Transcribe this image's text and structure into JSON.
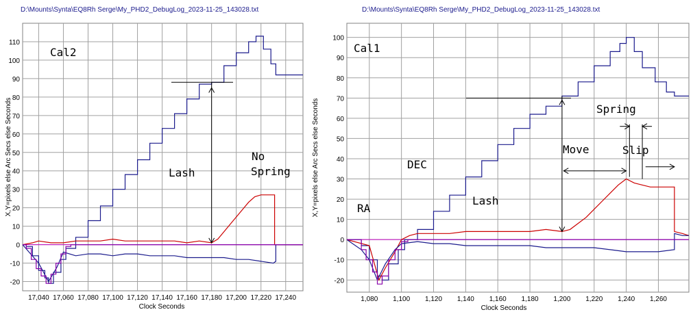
{
  "chart_data": [
    {
      "type": "line",
      "title": "D:\\Mounts\\Synta\\EQ8Rh Serge\\My_PHD2_DebugLog_2023-11-25_143028.txt",
      "xlabel": "Clock Seconds",
      "ylabel": "X,Y=pixels else Arc Secs else Seconds",
      "xlim": [
        17027,
        17254
      ],
      "ylim": [
        -25,
        120
      ],
      "xticks": [
        17040,
        17060,
        17080,
        17100,
        17120,
        17140,
        17160,
        17180,
        17200,
        17220,
        17240
      ],
      "xtick_labels": [
        "17,040",
        "17,060",
        "17,080",
        "17,100",
        "17,120",
        "17,140",
        "17,160",
        "17,180",
        "17,200",
        "17,220",
        "17,240"
      ],
      "yticks": [
        -20,
        -10,
        0,
        10,
        20,
        30,
        40,
        50,
        60,
        70,
        80,
        90,
        100,
        110
      ],
      "grid": true,
      "annotations": [
        "Cal2",
        "Lash",
        "No",
        "Spring"
      ],
      "series": [
        {
          "color": "#1a1a8c",
          "step": true,
          "points": [
            [
              17027,
              0
            ],
            [
              17030,
              -1
            ],
            [
              17035,
              -6
            ],
            [
              17040,
              -14
            ],
            [
              17045,
              -18
            ],
            [
              17048,
              -21
            ],
            [
              17052,
              -15
            ],
            [
              17058,
              -8
            ],
            [
              17062,
              -2
            ],
            [
              17070,
              4
            ],
            [
              17080,
              13
            ],
            [
              17090,
              21
            ],
            [
              17100,
              30
            ],
            [
              17110,
              38
            ],
            [
              17120,
              46
            ],
            [
              17130,
              55
            ],
            [
              17140,
              63
            ],
            [
              17150,
              71
            ],
            [
              17160,
              79
            ],
            [
              17170,
              87
            ],
            [
              17180,
              88
            ],
            [
              17190,
              97
            ],
            [
              17200,
              104
            ],
            [
              17210,
              110
            ],
            [
              17216,
              113
            ],
            [
              17222,
              106
            ],
            [
              17228,
              98
            ],
            [
              17232,
              92
            ],
            [
              17254,
              92
            ]
          ]
        },
        {
          "color": "#cc0000",
          "points": [
            [
              17027,
              0
            ],
            [
              17035,
              1
            ],
            [
              17040,
              2
            ],
            [
              17050,
              1
            ],
            [
              17060,
              1
            ],
            [
              17070,
              2
            ],
            [
              17080,
              2
            ],
            [
              17090,
              2
            ],
            [
              17100,
              3
            ],
            [
              17110,
              2
            ],
            [
              17120,
              2
            ],
            [
              17130,
              2
            ],
            [
              17140,
              2
            ],
            [
              17150,
              2
            ],
            [
              17160,
              1
            ],
            [
              17170,
              2
            ],
            [
              17180,
              1
            ],
            [
              17185,
              3
            ],
            [
              17190,
              7
            ],
            [
              17195,
              11
            ],
            [
              17200,
              15
            ],
            [
              17205,
              19
            ],
            [
              17210,
              23
            ],
            [
              17215,
              26
            ],
            [
              17220,
              27
            ],
            [
              17226,
              27
            ],
            [
              17231,
              27
            ],
            [
              17231,
              0
            ],
            [
              17254,
              0
            ]
          ]
        },
        {
          "color": "#1a1a8c",
          "points": [
            [
              17027,
              0
            ],
            [
              17040,
              -10
            ],
            [
              17048,
              -20
            ],
            [
              17055,
              -12
            ],
            [
              17060,
              -4
            ],
            [
              17070,
              -6
            ],
            [
              17080,
              -5
            ],
            [
              17090,
              -5
            ],
            [
              17100,
              -6
            ],
            [
              17110,
              -5
            ],
            [
              17120,
              -5
            ],
            [
              17130,
              -6
            ],
            [
              17140,
              -6
            ],
            [
              17150,
              -6
            ],
            [
              17160,
              -7
            ],
            [
              17170,
              -7
            ],
            [
              17180,
              -7
            ],
            [
              17190,
              -7
            ],
            [
              17200,
              -8
            ],
            [
              17210,
              -8
            ],
            [
              17220,
              -9
            ],
            [
              17230,
              -10
            ],
            [
              17232,
              -9
            ],
            [
              17232,
              0
            ],
            [
              17254,
              0
            ]
          ]
        },
        {
          "color": "#8800aa",
          "step": true,
          "points": [
            [
              17027,
              0
            ],
            [
              17030,
              -2
            ],
            [
              17034,
              -8
            ],
            [
              17038,
              -13
            ],
            [
              17042,
              -17
            ],
            [
              17046,
              -21
            ],
            [
              17050,
              -16
            ],
            [
              17054,
              -10
            ],
            [
              17058,
              -5
            ],
            [
              17062,
              -1
            ],
            [
              17066,
              0
            ],
            [
              17254,
              0
            ]
          ]
        }
      ]
    },
    {
      "type": "line",
      "title": "D:\\Mounts\\Synta\\EQ8Rh Serge\\My_PHD2_DebugLog_2023-11-25_143028.txt",
      "xlabel": "Clock Seconds",
      "ylabel": "X,Y=pixels else Arc Secs else Seconds",
      "xlim": [
        1066,
        1279
      ],
      "ylim": [
        -26,
        107
      ],
      "xticks": [
        1080,
        1100,
        1120,
        1140,
        1160,
        1180,
        1200,
        1220,
        1240,
        1260
      ],
      "xtick_labels": [
        "1,080",
        "1,100",
        "1,120",
        "1,140",
        "1,160",
        "1,180",
        "1,200",
        "1,220",
        "1,240",
        "1,260"
      ],
      "yticks": [
        -20,
        -10,
        0,
        10,
        20,
        30,
        40,
        50,
        60,
        70,
        80,
        90,
        100
      ],
      "grid": true,
      "annotations": [
        "Cal1",
        "DEC",
        "Lash",
        "RA",
        "Move",
        "Spring",
        "Slip"
      ],
      "series": [
        {
          "color": "#1a1a8c",
          "step": true,
          "points": [
            [
              1066,
              0
            ],
            [
              1075,
              -3
            ],
            [
              1080,
              -10
            ],
            [
              1085,
              -18
            ],
            [
              1088,
              -20
            ],
            [
              1092,
              -12
            ],
            [
              1098,
              -5
            ],
            [
              1102,
              0
            ],
            [
              1110,
              5
            ],
            [
              1120,
              14
            ],
            [
              1130,
              22
            ],
            [
              1140,
              31
            ],
            [
              1150,
              39
            ],
            [
              1160,
              47
            ],
            [
              1170,
              55
            ],
            [
              1180,
              62
            ],
            [
              1190,
              66
            ],
            [
              1200,
              71
            ],
            [
              1210,
              78
            ],
            [
              1220,
              86
            ],
            [
              1230,
              93
            ],
            [
              1236,
              97
            ],
            [
              1240,
              100
            ],
            [
              1245,
              93
            ],
            [
              1250,
              85
            ],
            [
              1258,
              78
            ],
            [
              1265,
              73
            ],
            [
              1270,
              71
            ],
            [
              1279,
              71
            ]
          ]
        },
        {
          "color": "#cc0000",
          "points": [
            [
              1066,
              0
            ],
            [
              1080,
              -3
            ],
            [
              1086,
              -20
            ],
            [
              1090,
              -14
            ],
            [
              1096,
              -6
            ],
            [
              1100,
              0
            ],
            [
              1105,
              2
            ],
            [
              1110,
              3
            ],
            [
              1120,
              3
            ],
            [
              1130,
              3
            ],
            [
              1140,
              4
            ],
            [
              1150,
              4
            ],
            [
              1160,
              4
            ],
            [
              1170,
              4
            ],
            [
              1180,
              4
            ],
            [
              1190,
              5
            ],
            [
              1200,
              4
            ],
            [
              1205,
              5
            ],
            [
              1210,
              8
            ],
            [
              1215,
              11
            ],
            [
              1220,
              15
            ],
            [
              1225,
              19
            ],
            [
              1230,
              23
            ],
            [
              1235,
              27
            ],
            [
              1240,
              30
            ],
            [
              1245,
              28
            ],
            [
              1250,
              27
            ],
            [
              1255,
              26
            ],
            [
              1260,
              26
            ],
            [
              1270,
              26
            ],
            [
              1270,
              4
            ],
            [
              1275,
              3
            ],
            [
              1279,
              2
            ]
          ]
        },
        {
          "color": "#1a1a8c",
          "points": [
            [
              1066,
              0
            ],
            [
              1075,
              -5
            ],
            [
              1080,
              -10
            ],
            [
              1085,
              -20
            ],
            [
              1090,
              -12
            ],
            [
              1096,
              -5
            ],
            [
              1100,
              -2
            ],
            [
              1110,
              -1
            ],
            [
              1120,
              -2
            ],
            [
              1130,
              -2
            ],
            [
              1140,
              -3
            ],
            [
              1150,
              -3
            ],
            [
              1160,
              -3
            ],
            [
              1170,
              -3
            ],
            [
              1180,
              -3
            ],
            [
              1190,
              -4
            ],
            [
              1200,
              -4
            ],
            [
              1210,
              -4
            ],
            [
              1220,
              -4
            ],
            [
              1230,
              -5
            ],
            [
              1240,
              -6
            ],
            [
              1250,
              -6
            ],
            [
              1260,
              -6
            ],
            [
              1270,
              -5
            ],
            [
              1270,
              3
            ],
            [
              1275,
              2
            ],
            [
              1279,
              2
            ]
          ]
        },
        {
          "color": "#8800aa",
          "step": true,
          "points": [
            [
              1066,
              0
            ],
            [
              1070,
              0
            ],
            [
              1075,
              -5
            ],
            [
              1078,
              -10
            ],
            [
              1082,
              -16
            ],
            [
              1085,
              -22
            ],
            [
              1088,
              -18
            ],
            [
              1092,
              -10
            ],
            [
              1096,
              -5
            ],
            [
              1100,
              -1
            ],
            [
              1104,
              0
            ],
            [
              1279,
              0
            ]
          ]
        }
      ]
    }
  ]
}
